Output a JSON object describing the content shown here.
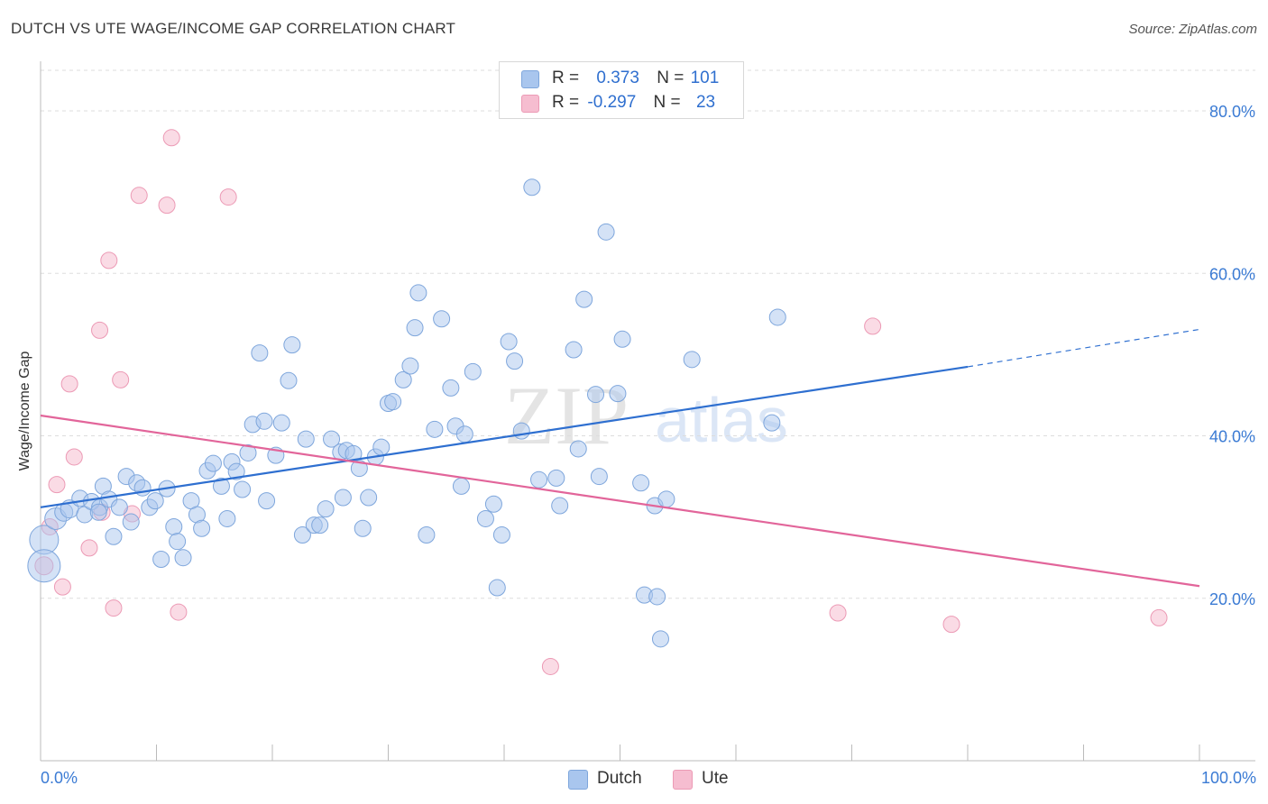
{
  "title": "DUTCH VS UTE WAGE/INCOME GAP CORRELATION CHART",
  "source": "Source: ZipAtlas.com",
  "watermark": {
    "zip": "ZIP",
    "atlas": "atlas"
  },
  "legend": {
    "row1": {
      "r_label": "R =",
      "r_value": "0.373",
      "n_label": "N =",
      "n_value": "101"
    },
    "row2": {
      "r_label": "R =",
      "r_value": "-0.297",
      "n_label": "N =",
      "n_value": "23"
    }
  },
  "bottom_legend": {
    "dutch": "Dutch",
    "ute": "Ute"
  },
  "colors": {
    "dutch_fill": "#a9c6ee",
    "dutch_stroke": "#7ea6dc",
    "dutch_line": "#2e6fd0",
    "ute_fill": "#f6bdd0",
    "ute_stroke": "#ec9ab5",
    "ute_line": "#e2659a",
    "tick_text": "#3b7bd4",
    "grid": "#dddddd"
  },
  "chart_data": {
    "type": "scatter",
    "title": "DUTCH VS UTE WAGE/INCOME GAP CORRELATION CHART",
    "xlabel": "",
    "ylabel": "Wage/Income Gap",
    "xlim": [
      0,
      100
    ],
    "ylim": [
      0,
      85
    ],
    "x_tick_labels": [
      "0.0%",
      "100.0%"
    ],
    "y_ticks": [
      20,
      40,
      60,
      80
    ],
    "y_tick_labels": [
      "20.0%",
      "40.0%",
      "60.0%",
      "80.0%"
    ],
    "grid": true,
    "legend_position": "top-center",
    "series": [
      {
        "name": "Dutch",
        "r": 0.373,
        "n": 101,
        "trend": {
          "x0": 0,
          "y0": 31.2,
          "x1": 80,
          "y1": 48.5,
          "dash_to_x": 100,
          "dash_to_y": 53.1
        },
        "points": [
          [
            0.3,
            27.2,
            16
          ],
          [
            0.3,
            24.0,
            18
          ],
          [
            1.3,
            29.8,
            12
          ],
          [
            2.0,
            30.6,
            10
          ],
          [
            2.5,
            31.0,
            10
          ],
          [
            3.4,
            32.3,
            9
          ],
          [
            3.8,
            30.3,
            9
          ],
          [
            4.4,
            31.9,
            9
          ],
          [
            5.1,
            31.2,
            9
          ],
          [
            5.0,
            30.6,
            9
          ],
          [
            5.4,
            33.8,
            9
          ],
          [
            5.9,
            32.2,
            9
          ],
          [
            6.3,
            27.6,
            9
          ],
          [
            6.8,
            31.2,
            9
          ],
          [
            7.4,
            35.0,
            9
          ],
          [
            7.8,
            29.4,
            9
          ],
          [
            8.3,
            34.2,
            9
          ],
          [
            8.8,
            33.6,
            9
          ],
          [
            9.4,
            31.2,
            9
          ],
          [
            9.9,
            32.0,
            9
          ],
          [
            10.4,
            24.8,
            9
          ],
          [
            10.9,
            33.5,
            9
          ],
          [
            11.5,
            28.8,
            9
          ],
          [
            11.8,
            27.0,
            9
          ],
          [
            12.3,
            25.0,
            9
          ],
          [
            13.0,
            32.0,
            9
          ],
          [
            13.5,
            30.3,
            9
          ],
          [
            13.9,
            28.6,
            9
          ],
          [
            14.4,
            35.7,
            9
          ],
          [
            14.9,
            36.6,
            9
          ],
          [
            15.6,
            33.8,
            9
          ],
          [
            16.1,
            29.8,
            9
          ],
          [
            16.5,
            36.8,
            9
          ],
          [
            16.9,
            35.6,
            9
          ],
          [
            17.4,
            33.4,
            9
          ],
          [
            17.9,
            37.9,
            9
          ],
          [
            18.3,
            41.4,
            9
          ],
          [
            18.9,
            50.2,
            9
          ],
          [
            19.3,
            41.8,
            9
          ],
          [
            19.5,
            32.0,
            9
          ],
          [
            20.3,
            37.6,
            9
          ],
          [
            20.8,
            41.6,
            9
          ],
          [
            21.4,
            46.8,
            9
          ],
          [
            21.7,
            51.2,
            9
          ],
          [
            22.6,
            27.8,
            9
          ],
          [
            22.9,
            39.6,
            9
          ],
          [
            23.6,
            29.0,
            9
          ],
          [
            24.1,
            29.0,
            9
          ],
          [
            24.6,
            31.0,
            9
          ],
          [
            25.1,
            39.6,
            9
          ],
          [
            25.9,
            38.0,
            9
          ],
          [
            26.1,
            32.4,
            9
          ],
          [
            26.4,
            38.2,
            9
          ],
          [
            27.0,
            37.8,
            9
          ],
          [
            27.5,
            36.0,
            9
          ],
          [
            27.8,
            28.6,
            9
          ],
          [
            28.3,
            32.4,
            9
          ],
          [
            28.9,
            37.4,
            9
          ],
          [
            29.4,
            38.6,
            9
          ],
          [
            30.0,
            44.0,
            9
          ],
          [
            30.4,
            44.2,
            9
          ],
          [
            31.3,
            46.9,
            9
          ],
          [
            31.9,
            48.6,
            9
          ],
          [
            32.3,
            53.3,
            9
          ],
          [
            32.6,
            57.6,
            9
          ],
          [
            33.3,
            27.8,
            9
          ],
          [
            34.0,
            40.8,
            9
          ],
          [
            34.6,
            54.4,
            9
          ],
          [
            35.4,
            45.9,
            9
          ],
          [
            35.8,
            41.2,
            9
          ],
          [
            36.3,
            33.8,
            9
          ],
          [
            36.6,
            40.2,
            9
          ],
          [
            37.3,
            47.9,
            9
          ],
          [
            38.4,
            29.8,
            9
          ],
          [
            39.1,
            31.6,
            9
          ],
          [
            39.4,
            21.3,
            9
          ],
          [
            39.8,
            27.8,
            9
          ],
          [
            40.4,
            51.6,
            9
          ],
          [
            40.9,
            49.2,
            9
          ],
          [
            41.5,
            40.6,
            9
          ],
          [
            42.4,
            70.6,
            9
          ],
          [
            43.0,
            34.6,
            9
          ],
          [
            44.5,
            34.8,
            9
          ],
          [
            44.8,
            31.4,
            9
          ],
          [
            46.0,
            50.6,
            9
          ],
          [
            46.4,
            38.4,
            9
          ],
          [
            46.9,
            56.8,
            9
          ],
          [
            47.9,
            45.1,
            9
          ],
          [
            48.2,
            35.0,
            9
          ],
          [
            48.8,
            65.1,
            9
          ],
          [
            49.8,
            45.2,
            9
          ],
          [
            50.2,
            51.9,
            9
          ],
          [
            51.8,
            34.2,
            9
          ],
          [
            52.1,
            20.4,
            9
          ],
          [
            53.0,
            31.4,
            9
          ],
          [
            53.2,
            20.2,
            9
          ],
          [
            53.5,
            15.0,
            9
          ],
          [
            54.0,
            32.2,
            9
          ],
          [
            56.2,
            49.4,
            9
          ],
          [
            63.1,
            41.6,
            9
          ],
          [
            63.6,
            54.6,
            9
          ]
        ]
      },
      {
        "name": "Ute",
        "r": -0.297,
        "n": 23,
        "trend": {
          "x0": 0,
          "y0": 42.5,
          "x1": 100,
          "y1": 21.5
        },
        "points": [
          [
            0.3,
            24.0,
            10
          ],
          [
            0.8,
            28.8,
            9
          ],
          [
            1.4,
            34.0,
            9
          ],
          [
            1.9,
            21.4,
            9
          ],
          [
            2.5,
            46.4,
            9
          ],
          [
            2.9,
            37.4,
            9
          ],
          [
            4.2,
            26.2,
            9
          ],
          [
            5.1,
            53.0,
            9
          ],
          [
            5.3,
            30.6,
            9
          ],
          [
            5.9,
            61.6,
            9
          ],
          [
            6.3,
            18.8,
            9
          ],
          [
            6.9,
            46.9,
            9
          ],
          [
            7.9,
            30.4,
            9
          ],
          [
            8.5,
            69.6,
            9
          ],
          [
            10.9,
            68.4,
            9
          ],
          [
            11.3,
            76.7,
            9
          ],
          [
            11.9,
            18.3,
            9
          ],
          [
            16.2,
            69.4,
            9
          ],
          [
            44.0,
            11.6,
            9
          ],
          [
            68.8,
            18.2,
            9
          ],
          [
            71.8,
            53.5,
            9
          ],
          [
            78.6,
            16.8,
            9
          ],
          [
            96.5,
            17.6,
            9
          ]
        ]
      }
    ]
  }
}
